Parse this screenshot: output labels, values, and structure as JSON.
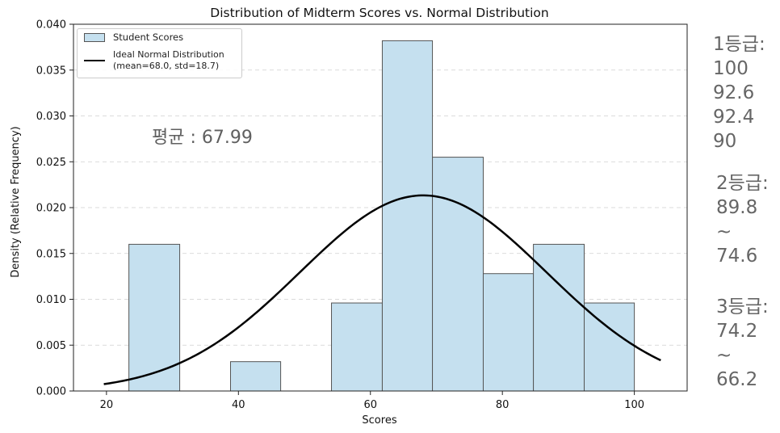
{
  "chart_data": {
    "type": "bar",
    "title": "Distribution of Midterm Scores vs. Normal Distribution",
    "xlabel": "Scores",
    "ylabel": "Density (Relative Frequency)",
    "xlim": [
      15,
      108
    ],
    "ylim": [
      0,
      0.04
    ],
    "x_ticks": [
      20,
      40,
      60,
      80,
      100
    ],
    "y_ticks": [
      0.0,
      0.005,
      0.01,
      0.015,
      0.02,
      0.025,
      0.03,
      0.035,
      0.04
    ],
    "grid": "horizontal dashed",
    "legend_placement": "upper-left",
    "histogram": {
      "name": "Student Scores",
      "color": "#c5e0ef",
      "edge_color": "#555555",
      "bins": [
        {
          "start": 23.4,
          "end": 31.1,
          "density": 0.016
        },
        {
          "start": 31.1,
          "end": 38.8,
          "density": 0.0
        },
        {
          "start": 38.8,
          "end": 46.4,
          "density": 0.0032
        },
        {
          "start": 46.4,
          "end": 54.1,
          "density": 0.0
        },
        {
          "start": 54.1,
          "end": 61.8,
          "density": 0.0096
        },
        {
          "start": 61.8,
          "end": 69.4,
          "density": 0.0382
        },
        {
          "start": 69.4,
          "end": 77.1,
          "density": 0.0255
        },
        {
          "start": 77.1,
          "end": 84.7,
          "density": 0.0128
        },
        {
          "start": 84.7,
          "end": 92.4,
          "density": 0.016
        },
        {
          "start": 92.4,
          "end": 100.0,
          "density": 0.0096
        }
      ]
    },
    "normal_curve": {
      "name_line1": "Ideal Normal Distribution",
      "name_line2": "(mean=68.0, std=18.7)",
      "mean": 68.0,
      "std": 18.7,
      "x_range": [
        19.6,
        104.0
      ],
      "color": "#000000"
    }
  },
  "annotation": {
    "mean_text": "평균 : 67.99"
  },
  "grades": [
    {
      "lines": [
        "1등급:",
        "100",
        "92.6",
        "92.4",
        "90"
      ]
    },
    {
      "lines": [
        "2등급:",
        "89.8",
        "~",
        "74.6"
      ]
    },
    {
      "lines": [
        "3등급:",
        "74.2",
        "~",
        "66.2"
      ]
    }
  ]
}
